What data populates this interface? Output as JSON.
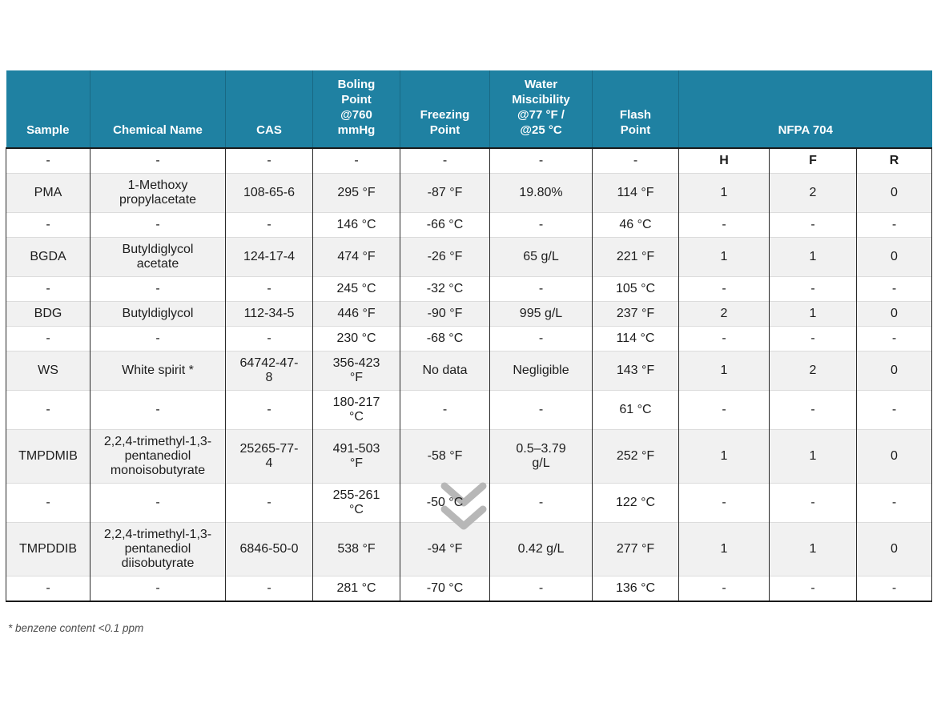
{
  "colors": {
    "header_bg": "#1f81a2",
    "header_text": "#ffffff",
    "row_shaded": "#f1f1f1",
    "chevron": "#b7b7b7",
    "border_dark": "#2a2a2a"
  },
  "table": {
    "header": {
      "sample": "Sample",
      "chemical_name": "Chemical Name",
      "cas": "CAS",
      "boiling_point": "Boling\nPoint\n@760\nmmHg",
      "freezing_point": "Freezing\nPoint",
      "water_miscibility": "Water\nMiscibility\n@77 °F /\n@25 °C",
      "flash_point": "Flash\nPoint",
      "nfpa_704": "NFPA 704"
    },
    "rows": [
      {
        "type": "subheader",
        "cells": [
          "-",
          "-",
          "-",
          "-",
          "-",
          "-",
          "-",
          "H",
          "F",
          "R"
        ]
      },
      {
        "type": "primary",
        "cells": [
          "PMA",
          "1-Methoxy\npropylacetate",
          "108-65-6",
          "295 °F",
          "-87 °F",
          "19.80%",
          "114 °F",
          "1",
          "2",
          "0"
        ]
      },
      {
        "type": "metric",
        "cells": [
          "-",
          "-",
          "-",
          "146 °C",
          "-66 °C",
          "-",
          "46 °C",
          "-",
          "-",
          "-"
        ]
      },
      {
        "type": "primary",
        "cells": [
          "BGDA",
          "Butyldiglycol\nacetate",
          "124-17-4",
          "474 °F",
          "-26 °F",
          "65 g/L",
          "221 °F",
          "1",
          "1",
          "0"
        ]
      },
      {
        "type": "metric",
        "cells": [
          "-",
          "-",
          "-",
          "245 °C",
          "-32 °C",
          "-",
          "105 °C",
          "-",
          "-",
          "-"
        ]
      },
      {
        "type": "primary",
        "cells": [
          "BDG",
          "Butyldiglycol",
          "112-34-5",
          "446 °F",
          "-90 °F",
          "995 g/L",
          "237 °F",
          "2",
          "1",
          "0"
        ]
      },
      {
        "type": "metric",
        "cells": [
          "-",
          "-",
          "-",
          "230 °C",
          "-68 °C",
          "-",
          "114 °C",
          "-",
          "-",
          "-"
        ]
      },
      {
        "type": "primary",
        "cells": [
          "WS",
          "White spirit *",
          "64742-47-\n8",
          "356-423\n°F",
          "No data",
          "Negligible",
          "143 °F",
          "1",
          "2",
          "0"
        ]
      },
      {
        "type": "metric",
        "cells": [
          "-",
          "-",
          "-",
          "180-217\n°C",
          "-",
          "-",
          "61 °C",
          "-",
          "-",
          "-"
        ]
      },
      {
        "type": "primary",
        "cells": [
          "TMPDMIB",
          "2,2,4-trimethyl-1,3-\npentanediol\nmonoisobutyrate",
          "25265-77-\n4",
          "491-503\n°F",
          "-58 °F",
          "0.5–3.79\ng/L",
          "252 °F",
          "1",
          "1",
          "0"
        ]
      },
      {
        "type": "metric",
        "cells": [
          "-",
          "-",
          "-",
          "255-261\n°C",
          "-50 °C",
          "-",
          "122 °C",
          "-",
          "-",
          "-"
        ]
      },
      {
        "type": "primary",
        "cells": [
          "TMPDDIB",
          "2,2,4-trimethyl-1,3-\npentanediol\ndiisobutyrate",
          "6846-50-0",
          "538 °F",
          "-94 °F",
          "0.42 g/L",
          "277 °F",
          "1",
          "1",
          "0"
        ]
      },
      {
        "type": "metric",
        "cells": [
          "-",
          "-",
          "-",
          "281 °C",
          "-70 °C",
          "-",
          "136 °C",
          "-",
          "-",
          "-"
        ]
      }
    ]
  },
  "icons": {
    "scroll_indicator": "double-chevron-down"
  },
  "footnote": "* benzene content <0.1 ppm"
}
